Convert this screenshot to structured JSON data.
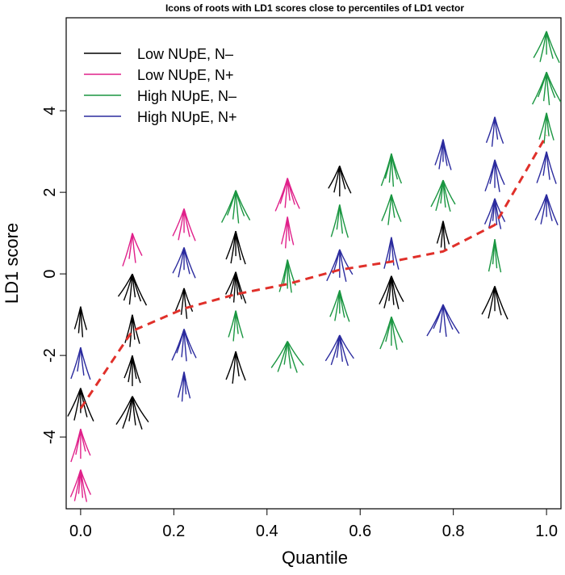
{
  "chart_data": {
    "type": "scatter",
    "title": "Icons of roots with LD1 scores close to percentiles of LD1 vector",
    "x_label": "Quantile",
    "y_label": "LD1 score",
    "xlim": [
      -0.031,
      1.031
    ],
    "ylim": [
      -5.76,
      6.28
    ],
    "xticks": [
      {
        "value": 0,
        "label": "0.0"
      },
      {
        "value": 0.2,
        "label": "0.2"
      },
      {
        "value": 0.4,
        "label": "0.4"
      },
      {
        "value": 0.6,
        "label": "0.6"
      },
      {
        "value": 0.8,
        "label": "0.8"
      },
      {
        "value": 1,
        "label": "1.0"
      }
    ],
    "yticks": [
      -4,
      -2,
      0,
      2,
      4
    ],
    "legend": "top-left",
    "series": [
      {
        "name": "Low NUpE, N–",
        "color": "#000000",
        "x": [
          0,
          0,
          0.111,
          0.111,
          0.111,
          0.111,
          0.222,
          0.333,
          0.333,
          0.333,
          0.556,
          0.667,
          0.778,
          0.889
        ],
        "values": [
          -0.8,
          -2.8,
          0,
          -1.0,
          -2.0,
          -3.0,
          -0.35,
          1.05,
          0.05,
          -1.9,
          2.65,
          -0.05,
          1.3,
          -0.3
        ]
      },
      {
        "name": "Low NUpE, N+",
        "color": "#e0208a",
        "x": [
          0,
          0,
          0.111,
          0.222,
          0.444,
          0.444
        ],
        "values": [
          -3.8,
          -4.8,
          1.0,
          1.6,
          2.35,
          1.4
        ]
      },
      {
        "name": "High NUpE, N–",
        "color": "#1a9641",
        "x": [
          0.333,
          0.333,
          0.444,
          0.444,
          0.556,
          0.556,
          0.667,
          0.667,
          0.667,
          0.778,
          0.889,
          1.0,
          1.0,
          1.0
        ],
        "values": [
          2.05,
          -0.9,
          0.35,
          -1.65,
          1.7,
          -0.4,
          2.95,
          1.95,
          -1.05,
          2.3,
          0.85,
          5.95,
          4.95,
          3.95
        ]
      },
      {
        "name": "High NUpE, N+",
        "color": "#2b2b9e",
        "x": [
          0,
          0.222,
          0.222,
          0.222,
          0.556,
          0.556,
          0.667,
          0.778,
          0.778,
          0.889,
          0.889,
          0.889,
          1.0,
          1.0
        ],
        "values": [
          -1.8,
          0.65,
          -1.35,
          -2.4,
          0.6,
          -1.5,
          0.9,
          3.3,
          -0.75,
          3.85,
          2.8,
          1.85,
          3.0,
          1.95
        ]
      }
    ],
    "trend": {
      "color": "#e0302a",
      "x": [
        0,
        0.111,
        0.222,
        0.333,
        0.444,
        0.556,
        0.667,
        0.778,
        0.889,
        1.0
      ],
      "values": [
        -3.3,
        -1.4,
        -0.85,
        -0.5,
        -0.25,
        0.1,
        0.3,
        0.55,
        1.2,
        3.4
      ]
    }
  }
}
